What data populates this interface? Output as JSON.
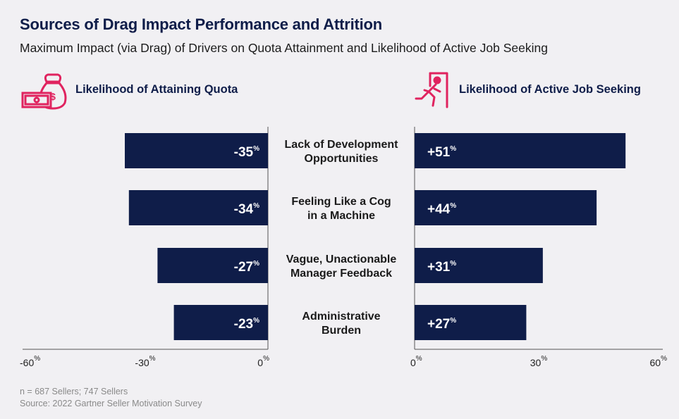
{
  "title": "Sources of Drag Impact Performance and Attrition",
  "subtitle": "Maximum Impact (via Drag) of Drivers on Quota Attainment and Likelihood of Active Job Seeking",
  "colors": {
    "bar": "#0f1d49",
    "accent": "#e0235f",
    "title": "#0f1d49"
  },
  "left_panel": {
    "heading": "Likelihood of Attaining Quota",
    "icon": "money-bag-icon"
  },
  "right_panel": {
    "heading": "Likelihood of Active Job Seeking",
    "icon": "exit-door-icon"
  },
  "footnote": {
    "n": "n = 687 Sellers; 747 Sellers",
    "source": "Source: 2022 Gartner Seller Motivation Survey"
  },
  "chart_data": [
    {
      "type": "bar",
      "orientation": "horizontal",
      "title": "Likelihood of Attaining Quota",
      "categories": [
        [
          "Lack of Development",
          "Opportunities"
        ],
        [
          "Feeling Like a Cog",
          "in a Machine"
        ],
        [
          "Vague, Unactionable",
          "Manager Feedback"
        ],
        [
          "Administrative",
          "Burden"
        ]
      ],
      "values": [
        -35,
        -34,
        -27,
        -23
      ],
      "value_labels": [
        "-35",
        "-34",
        "-27",
        "-23"
      ],
      "unit": "%",
      "xlim": [
        -60,
        0
      ],
      "ticks": [
        -60,
        -30,
        0
      ],
      "tick_labels": [
        "-60",
        "-30",
        "0"
      ]
    },
    {
      "type": "bar",
      "orientation": "horizontal",
      "title": "Likelihood of Active Job Seeking",
      "categories": [
        [
          "Lack of Development",
          "Opportunities"
        ],
        [
          "Feeling Like a Cog",
          "in a Machine"
        ],
        [
          "Vague, Unactionable",
          "Manager Feedback"
        ],
        [
          "Administrative",
          "Burden"
        ]
      ],
      "values": [
        51,
        44,
        31,
        27
      ],
      "value_labels": [
        "+51",
        "+44",
        "+31",
        "+27"
      ],
      "unit": "%",
      "xlim": [
        0,
        60
      ],
      "ticks": [
        0,
        30,
        60
      ],
      "tick_labels": [
        "0",
        "30",
        "60"
      ]
    }
  ]
}
